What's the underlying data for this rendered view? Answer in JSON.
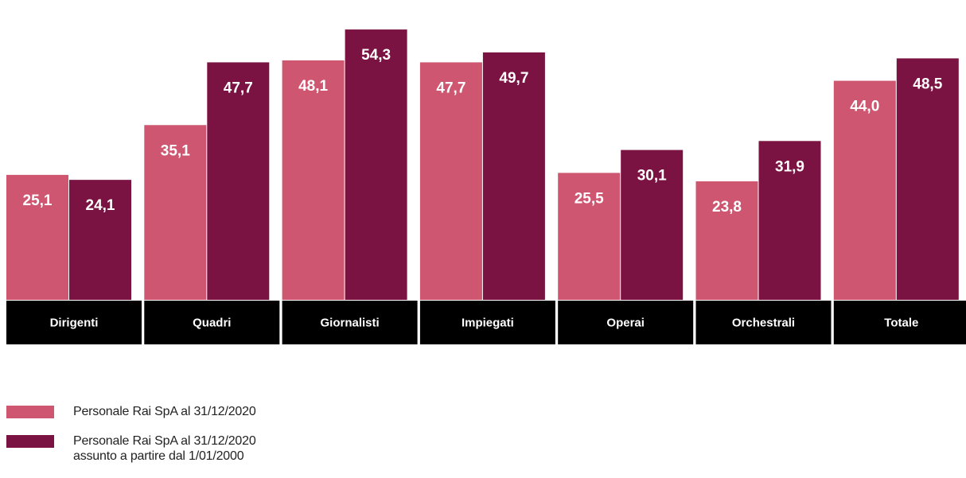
{
  "chart_data": {
    "type": "bar",
    "categories": [
      "Dirigenti",
      "Quadri",
      "Giornalisti",
      "Impiegati",
      "Operai",
      "Orchestrali",
      "Totale"
    ],
    "series": [
      {
        "name": "Personale Rai SpA al 31/12/2020",
        "color": "#cf5670",
        "values": [
          25.1,
          35.1,
          48.1,
          47.7,
          25.5,
          23.8,
          44.0
        ],
        "labels": [
          "25,1",
          "35,1",
          "48,1",
          "47,7",
          "25,5",
          "23,8",
          "44,0"
        ]
      },
      {
        "name": "Personale Rai SpA al 31/12/2020\nassunto a partire dal 1/01/2000",
        "color": "#7a1242",
        "values": [
          24.1,
          47.7,
          54.3,
          49.7,
          30.1,
          31.9,
          48.5
        ],
        "labels": [
          "24,1",
          "47,7",
          "54,3",
          "49,7",
          "30,1",
          "31,9",
          "48,5"
        ]
      }
    ],
    "ylim": [
      0,
      55
    ],
    "legend": "bottom-left",
    "grid": false,
    "category_band_color": "#000000"
  }
}
